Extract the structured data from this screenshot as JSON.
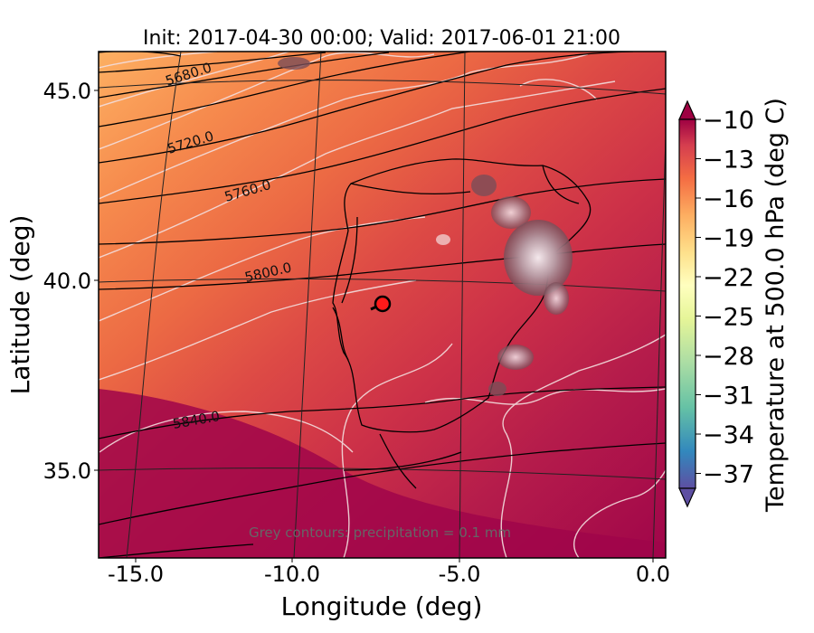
{
  "title": "Init: 2017-04-30 00:00; Valid: 2017-06-01 21:00",
  "xlabel": "Longitude (deg)",
  "ylabel": "Latitude (deg)",
  "colorbar_label": "Temperature at 500.0 hPa (deg C)",
  "footnote": "Grey contours: precipitation = 0.1 mm",
  "chart_data": {
    "type": "heatmap",
    "x_ticks": [
      "-15.0",
      "-10.0",
      "-5.0",
      "0.0"
    ],
    "x_values": [
      -15,
      -10,
      -5,
      0
    ],
    "y_ticks": [
      "45.0",
      "40.0",
      "35.0"
    ],
    "y_values": [
      45,
      40,
      35
    ],
    "xlim": [
      -15.9,
      0.3
    ],
    "ylim": [
      32.7,
      46.0
    ],
    "colorbar_ticks": [
      "−10",
      "−13",
      "−16",
      "−19",
      "−22",
      "−25",
      "−28",
      "−31",
      "−34",
      "−37"
    ],
    "colorbar_range": [
      -38,
      -9
    ],
    "height_contour_labels": [
      {
        "text": "5680.0",
        "lon": -13.5,
        "lat": 45.5
      },
      {
        "text": "5720.0",
        "lon": -13.5,
        "lat": 43.6
      },
      {
        "text": "5760.0",
        "lon": -11.6,
        "lat": 42.2
      },
      {
        "text": "5800.0",
        "lon": -10.3,
        "lat": 40.4
      },
      {
        "text": "5840.0",
        "lon": -13.2,
        "lat": 36.2
      }
    ],
    "marker": {
      "lon": -7.6,
      "lat": 39.35
    }
  },
  "colors": {
    "warm": "#fdb062",
    "mid": "#e8533c",
    "deep": "#a0054a",
    "contour_white": "#f3dede",
    "contour_black": "#000000"
  }
}
